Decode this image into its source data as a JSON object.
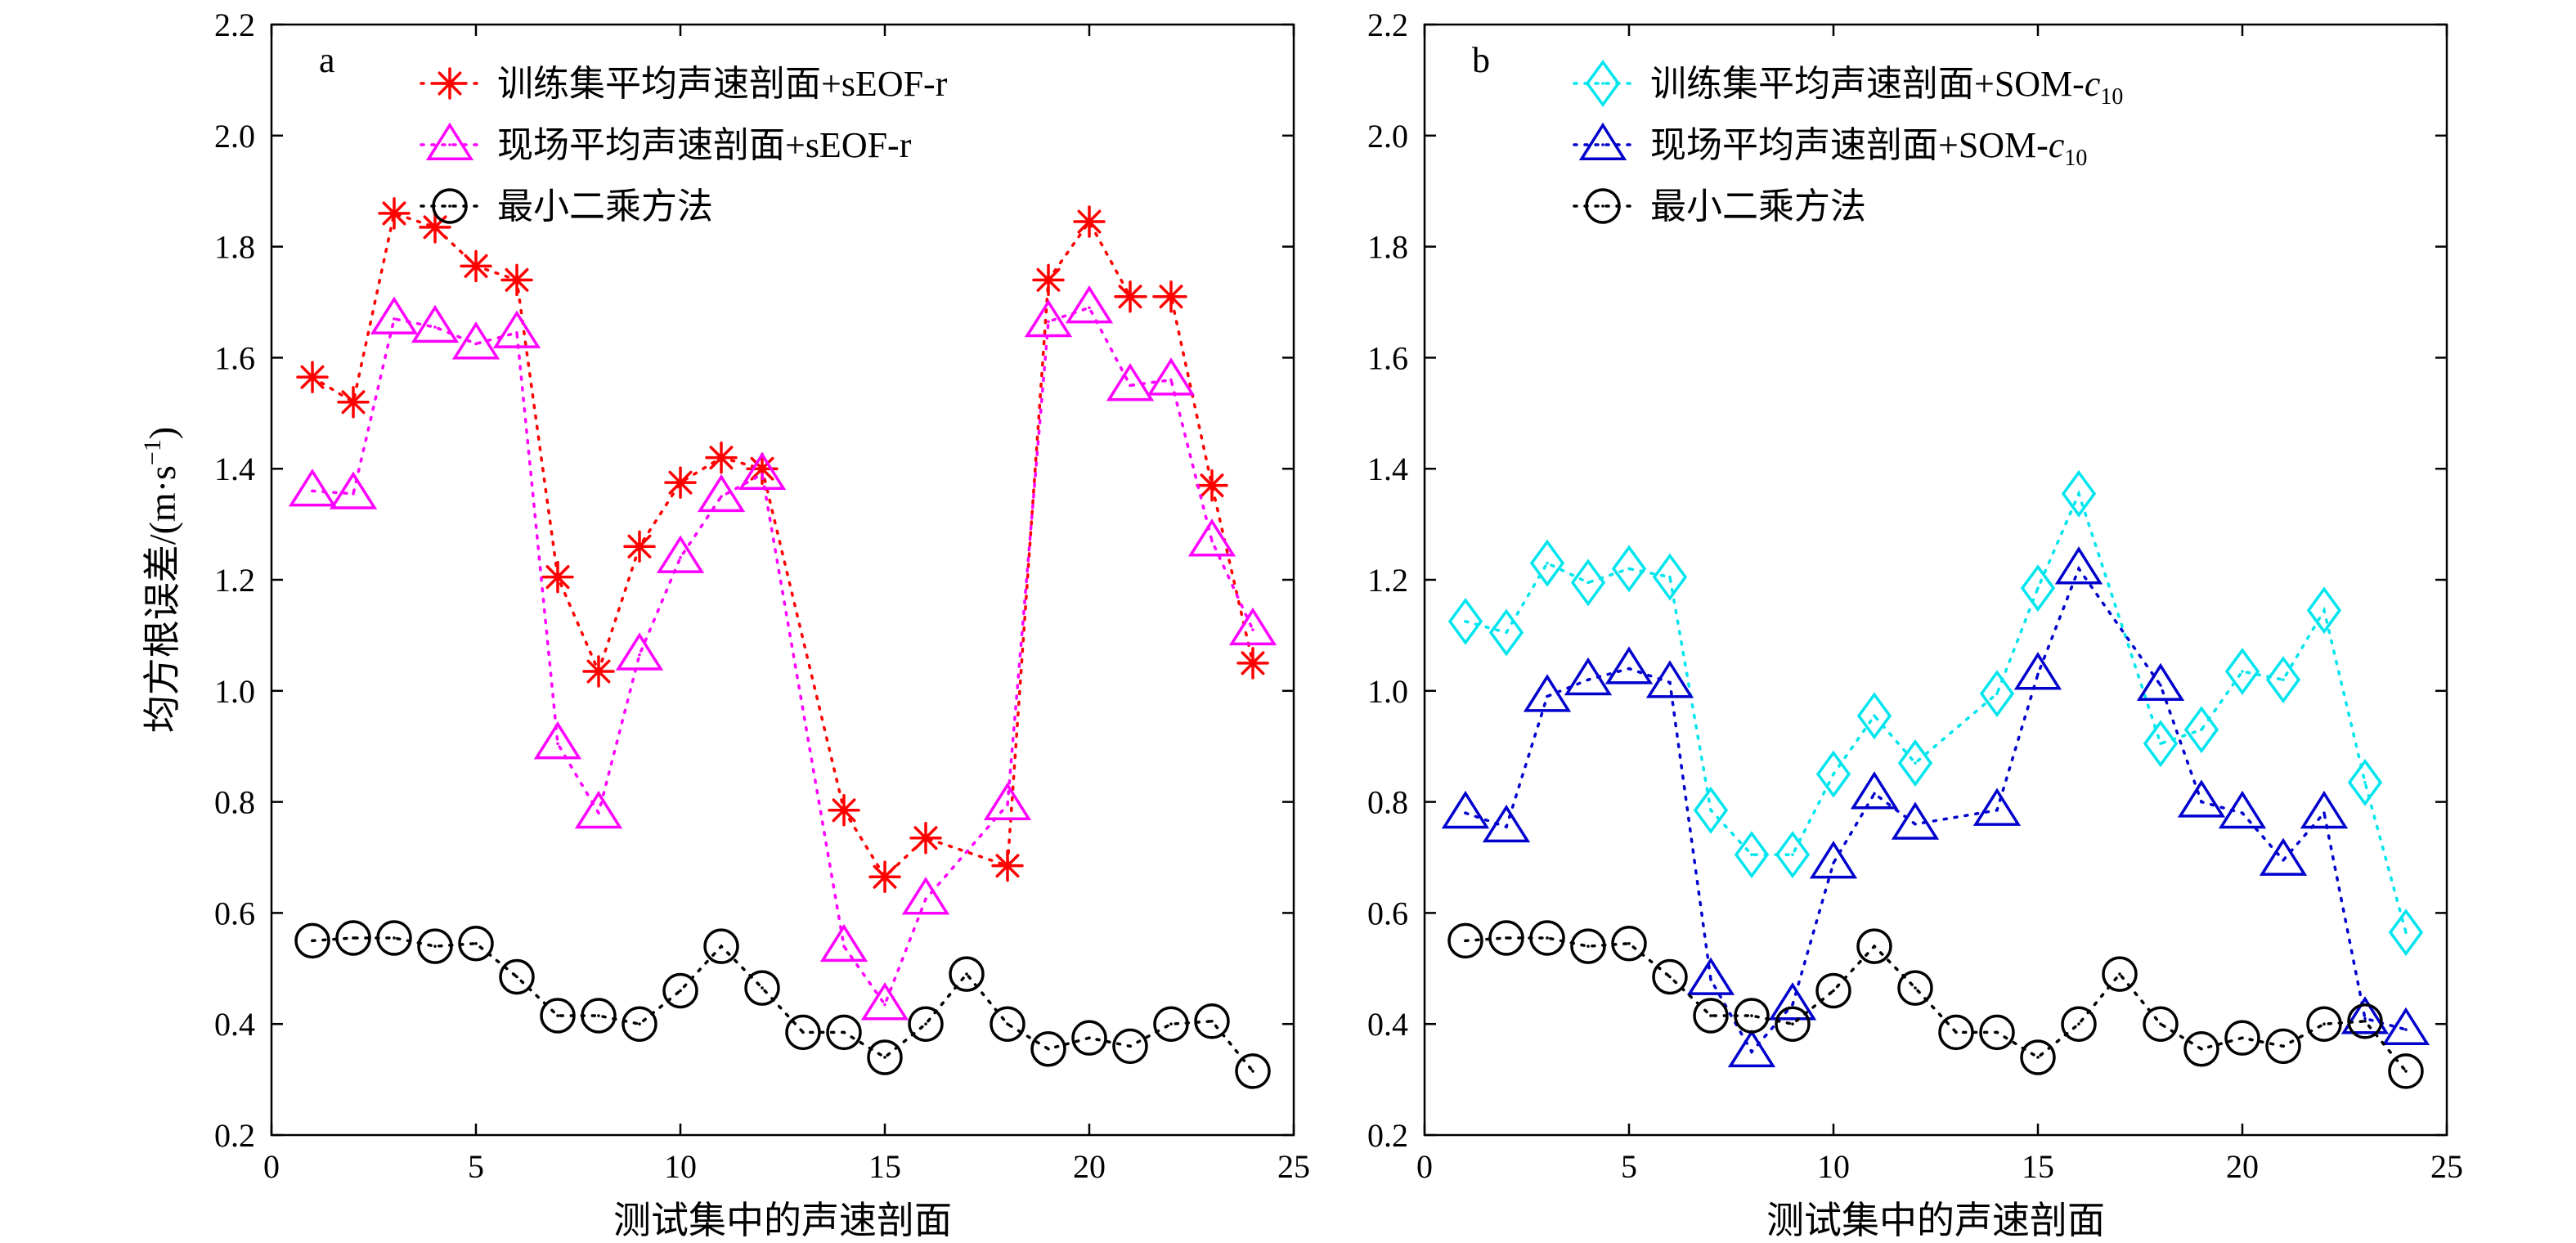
{
  "chart_data": [
    {
      "type": "line",
      "panel_label": "a",
      "xlabel": "测试集中的声速剖面",
      "ylabel": "均方根误差/(m·s",
      "ylabel_sup": "−1",
      "ylabel_close": ")",
      "xlim": [
        0,
        25
      ],
      "ylim": [
        0.2,
        2.2
      ],
      "xticks": [
        "0",
        "5",
        "10",
        "15",
        "20",
        "25"
      ],
      "yticks": [
        "0.2",
        "0.4",
        "0.6",
        "0.8",
        "1.0",
        "1.2",
        "1.4",
        "1.6",
        "1.8",
        "2.0",
        "2.2"
      ],
      "grid": false,
      "legend_position": "top",
      "x": [
        1,
        2,
        3,
        4,
        5,
        6,
        7,
        8,
        9,
        10,
        11,
        12,
        13,
        14,
        15,
        16,
        17,
        18,
        19,
        20,
        21,
        22,
        23,
        24
      ],
      "series": [
        {
          "name": "训练集平均声速剖面+sEOF-r",
          "marker": "asterisk",
          "color": "#ff0000",
          "x": [
            1,
            2,
            3,
            4,
            5,
            6,
            7,
            8,
            9,
            10,
            11,
            12,
            14,
            15,
            16,
            18,
            19,
            20,
            21,
            22,
            23,
            24
          ],
          "values": [
            1.565,
            1.52,
            1.86,
            1.835,
            1.765,
            1.74,
            1.205,
            1.035,
            1.26,
            1.375,
            1.42,
            1.4,
            0.785,
            0.665,
            0.735,
            0.685,
            1.74,
            1.845,
            1.71,
            1.71,
            1.37,
            1.05
          ]
        },
        {
          "name": "现场平均声速剖面+sEOF-r",
          "marker": "triangle",
          "color": "#ff00ff",
          "x": [
            1,
            2,
            3,
            4,
            5,
            6,
            7,
            8,
            9,
            10,
            11,
            12,
            14,
            15,
            16,
            18,
            19,
            20,
            21,
            22,
            23,
            24
          ],
          "values": [
            1.36,
            1.355,
            1.67,
            1.655,
            1.625,
            1.645,
            0.905,
            0.78,
            1.065,
            1.24,
            1.35,
            1.39,
            0.54,
            0.435,
            0.625,
            0.795,
            1.665,
            1.69,
            1.55,
            1.56,
            1.27,
            1.11
          ]
        },
        {
          "name": "最小二乘方法",
          "marker": "circle",
          "color": "#000000",
          "x": [
            1,
            2,
            3,
            4,
            5,
            6,
            7,
            8,
            9,
            10,
            11,
            12,
            13,
            14,
            15,
            16,
            17,
            18,
            19,
            20,
            21,
            22,
            23,
            24
          ],
          "values": [
            0.55,
            0.555,
            0.555,
            0.54,
            0.545,
            0.485,
            0.415,
            0.415,
            0.4,
            0.46,
            0.54,
            0.465,
            0.385,
            0.385,
            0.34,
            0.4,
            0.49,
            0.4,
            0.355,
            0.375,
            0.36,
            0.4,
            0.405,
            0.315
          ]
        }
      ]
    },
    {
      "type": "line",
      "panel_label": "b",
      "xlabel": "测试集中的声速剖面",
      "xlim": [
        0,
        25
      ],
      "ylim": [
        0.2,
        2.2
      ],
      "xticks": [
        "0",
        "5",
        "10",
        "15",
        "20",
        "25"
      ],
      "yticks": [
        "0.2",
        "0.4",
        "0.6",
        "0.8",
        "1.0",
        "1.2",
        "1.4",
        "1.6",
        "1.8",
        "2.0",
        "2.2"
      ],
      "grid": false,
      "legend_position": "top",
      "series": [
        {
          "name": "训练集平均声速剖面+SOM-",
          "name_italic": "c",
          "name_sub": "10",
          "marker": "diamond",
          "color": "#00e5ee",
          "x": [
            1,
            2,
            3,
            4,
            5,
            6,
            7,
            8,
            9,
            10,
            11,
            12,
            14,
            15,
            16,
            18,
            19,
            20,
            21,
            22,
            23,
            24
          ],
          "values": [
            1.125,
            1.105,
            1.23,
            1.195,
            1.22,
            1.205,
            0.785,
            0.705,
            0.705,
            0.85,
            0.955,
            0.87,
            0.995,
            1.185,
            1.355,
            0.905,
            0.93,
            1.035,
            1.02,
            1.145,
            0.835,
            0.565
          ]
        },
        {
          "name": "现场平均声速剖面+SOM-",
          "name_italic": "c",
          "name_sub": "10",
          "marker": "triangle",
          "color": "#0000cd",
          "x": [
            1,
            2,
            3,
            4,
            5,
            6,
            7,
            8,
            9,
            10,
            11,
            12,
            14,
            15,
            16,
            18,
            19,
            20,
            21,
            22,
            23,
            24
          ],
          "values": [
            0.78,
            0.755,
            0.99,
            1.02,
            1.04,
            1.015,
            0.48,
            0.35,
            0.435,
            0.69,
            0.815,
            0.76,
            0.785,
            1.03,
            1.22,
            1.01,
            0.8,
            0.78,
            0.695,
            0.78,
            0.41,
            0.39
          ]
        },
        {
          "name": "最小二乘方法",
          "marker": "circle",
          "color": "#000000",
          "x": [
            1,
            2,
            3,
            4,
            5,
            6,
            7,
            8,
            9,
            10,
            11,
            12,
            13,
            14,
            15,
            16,
            17,
            18,
            19,
            20,
            21,
            22,
            23,
            24
          ],
          "values": [
            0.55,
            0.555,
            0.555,
            0.54,
            0.545,
            0.485,
            0.415,
            0.415,
            0.4,
            0.46,
            0.54,
            0.465,
            0.385,
            0.385,
            0.34,
            0.4,
            0.49,
            0.4,
            0.355,
            0.375,
            0.36,
            0.4,
            0.405,
            0.315
          ]
        }
      ]
    }
  ]
}
